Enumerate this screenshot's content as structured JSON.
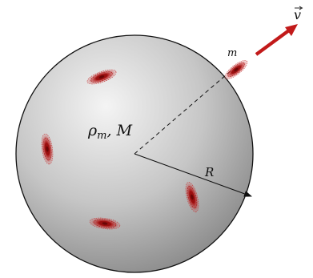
{
  "labels": {
    "density_mass": "ρm, M",
    "density_symbol": "ρ",
    "density_subscript": "m",
    "mass_symbol": ", M",
    "radius": "R",
    "particle_mass": "m",
    "velocity_symbol": "v"
  },
  "colors": {
    "sphere_light": "#f4f4f4",
    "sphere_mid": "#c6c6c6",
    "sphere_dark": "#8a8a8a",
    "outline": "#111111",
    "galaxy_red": "#b01818",
    "velocity_arrow": "#c21a1a"
  },
  "icons": {
    "galaxy": "spiral-galaxy-icon",
    "velocity": "arrow-vector-icon"
  }
}
